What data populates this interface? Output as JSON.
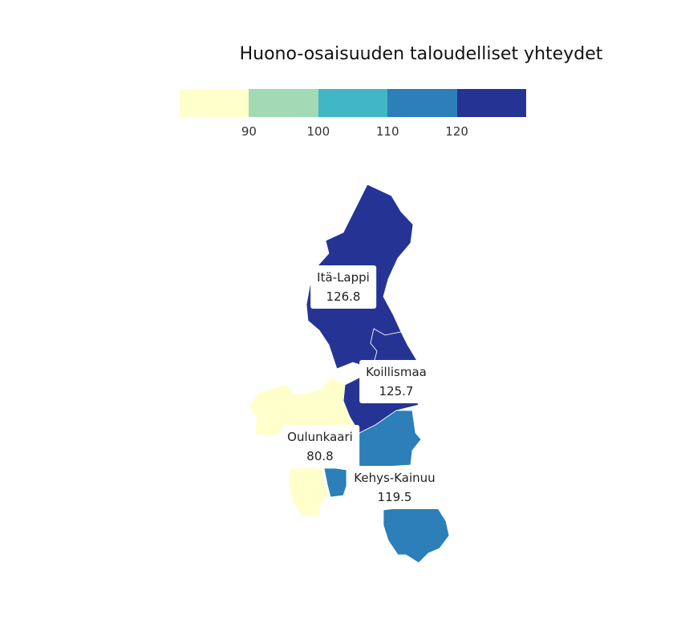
{
  "title": "Huono-osaisuuden taloudelliset yhteydet",
  "legend": {
    "colors": [
      "#ffffcc",
      "#a1dab4",
      "#41b6c4",
      "#2c7fb8",
      "#253494"
    ],
    "ticks": [
      "90",
      "100",
      "110",
      "120"
    ]
  },
  "regions": [
    {
      "name": "Itä-Lappi",
      "value": "126.8",
      "color": "#253494"
    },
    {
      "name": "Koillismaa",
      "value": "125.7",
      "color": "#253494"
    },
    {
      "name": "Oulunkaari",
      "value": "80.8",
      "color": "#ffffcc"
    },
    {
      "name": "Kehys-Kainuu",
      "value": "119.5",
      "color": "#2c7fb8"
    }
  ]
}
